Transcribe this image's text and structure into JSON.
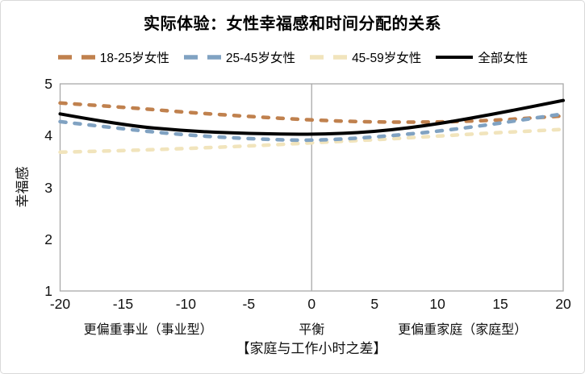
{
  "colors": {
    "axis": "#a9a9a9",
    "text": "#111111",
    "background": "#ffffff",
    "series_18_25": "#c0814e",
    "series_25_45": "#80a2c2",
    "series_45_59": "#f1e4bc",
    "series_all": "#000000"
  },
  "chart_data": {
    "type": "line",
    "title": "实际体验：女性幸福感和时间分配的关系",
    "xlabel": "【家庭与工作小时之差】",
    "ylabel": "幸福感",
    "xlim": [
      -20,
      20
    ],
    "ylim": [
      1,
      5
    ],
    "x_ticks": [
      -20,
      -15,
      -10,
      -5,
      0,
      5,
      10,
      15,
      20
    ],
    "y_ticks": [
      1,
      2,
      3,
      4,
      5
    ],
    "grid": false,
    "legend_position": "top",
    "reference_line_x": 0,
    "x": [
      -20,
      -15,
      -10,
      -5,
      0,
      5,
      10,
      15,
      20
    ],
    "series": [
      {
        "key": "age-18-25",
        "name": "18-25岁女性",
        "color": "#c0814e",
        "style": "dashed",
        "values": [
          4.63,
          4.55,
          4.45,
          4.37,
          4.3,
          4.26,
          4.26,
          4.3,
          4.38
        ]
      },
      {
        "key": "age-25-45",
        "name": "25-45岁女性",
        "color": "#80a2c2",
        "style": "dashed",
        "values": [
          4.27,
          4.13,
          4.01,
          3.94,
          3.9,
          3.97,
          4.08,
          4.24,
          4.42
        ]
      },
      {
        "key": "age-45-59",
        "name": "45-59岁女性",
        "color": "#f1e4bc",
        "style": "dashed",
        "values": [
          3.68,
          3.71,
          3.75,
          3.8,
          3.86,
          3.92,
          3.99,
          4.06,
          4.12
        ]
      },
      {
        "key": "all-women",
        "name": "全部女性",
        "color": "#000000",
        "style": "solid",
        "values": [
          4.42,
          4.2,
          4.09,
          4.04,
          4.02,
          4.07,
          4.22,
          4.44,
          4.68
        ]
      }
    ],
    "annotations": [
      {
        "key": "career-side",
        "text": "更偏重事业（事业型）",
        "x": -13
      },
      {
        "key": "balance",
        "text": "平衡",
        "x": 0
      },
      {
        "key": "family-side",
        "text": "更偏重家庭（家庭型）",
        "x": 12
      }
    ]
  }
}
